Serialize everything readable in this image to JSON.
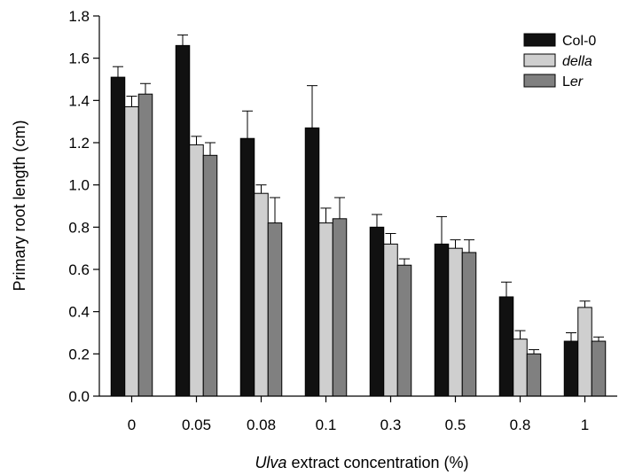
{
  "chart_data": {
    "type": "bar",
    "title": "",
    "xlabel_italic": "Ulva",
    "xlabel_rest": " extract concentration (%)",
    "ylabel": "Primary root length (cm)",
    "ylim": [
      0,
      1.8
    ],
    "yticks": [
      "0.0",
      "0.2",
      "0.4",
      "0.6",
      "0.8",
      "1.0",
      "1.2",
      "1.4",
      "1.6",
      "1.8"
    ],
    "categories": [
      "0",
      "0.05",
      "0.08",
      "0.1",
      "0.3",
      "0.5",
      "0.8",
      "1"
    ],
    "legend_position": "top-right",
    "grid": false,
    "series": [
      {
        "label": "Col-0",
        "label_italic": "",
        "label_rest": "",
        "color": "#111111",
        "values": [
          1.51,
          1.66,
          1.22,
          1.27,
          0.8,
          0.72,
          0.47,
          0.26
        ],
        "errors": [
          0.05,
          0.05,
          0.13,
          0.2,
          0.06,
          0.13,
          0.07,
          0.04
        ]
      },
      {
        "label": "",
        "label_italic": "della",
        "label_rest": "",
        "color": "#cfcfcf",
        "values": [
          1.37,
          1.19,
          0.96,
          0.82,
          0.72,
          0.7,
          0.27,
          0.42
        ],
        "errors": [
          0.05,
          0.04,
          0.04,
          0.07,
          0.05,
          0.04,
          0.04,
          0.03
        ]
      },
      {
        "label": "",
        "label_italic": "",
        "label_prefix": "L",
        "label_italic_part": "er",
        "color": "#808080",
        "values": [
          1.43,
          1.14,
          0.82,
          0.84,
          0.62,
          0.68,
          0.2,
          0.26
        ],
        "errors": [
          0.05,
          0.06,
          0.12,
          0.1,
          0.03,
          0.06,
          0.02,
          0.02
        ]
      }
    ]
  }
}
